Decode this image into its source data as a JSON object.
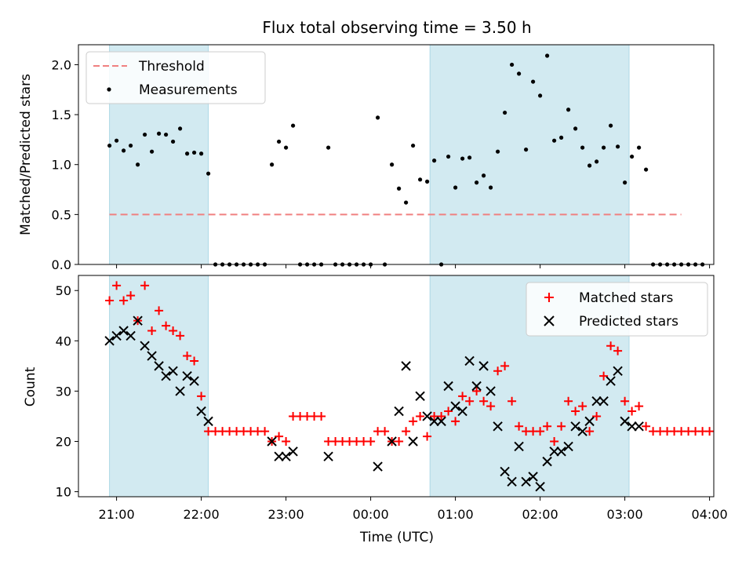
{
  "figure": {
    "title": "Flux total observing time = 3.50 h"
  },
  "colors": {
    "threshold": "#f08080",
    "measurements": "#000000",
    "matched": "#ff0000",
    "predicted": "#000000",
    "band": "#add8e6"
  },
  "chart_data": [
    {
      "type": "scatter",
      "title": "Flux total observing time = 3.50 h",
      "xlabel": "",
      "ylabel": "Matched/Predicted stars",
      "ylim": [
        0,
        2.2
      ],
      "xlim_hours_utc": [
        20.55,
        28.05
      ],
      "yticks": [
        "0.0",
        "0.5",
        "1.0",
        "1.5",
        "2.0"
      ],
      "shaded_intervals": [
        [
          "20:55",
          "22:05"
        ],
        [
          "00:42",
          "03:03"
        ]
      ],
      "threshold": {
        "name": "Threshold",
        "value": 0.5,
        "x_range": [
          "20:55",
          "03:40"
        ],
        "style": "dashed"
      },
      "legend": {
        "position": "top-left",
        "entries": [
          "Threshold",
          "Measurements"
        ]
      },
      "series": [
        {
          "name": "Measurements",
          "points": [
            [
              "20:55",
              1.19
            ],
            [
              "21:00",
              1.24
            ],
            [
              "21:05",
              1.14
            ],
            [
              "21:10",
              1.19
            ],
            [
              "21:15",
              1.0
            ],
            [
              "21:20",
              1.3
            ],
            [
              "21:25",
              1.13
            ],
            [
              "21:30",
              1.31
            ],
            [
              "21:35",
              1.3
            ],
            [
              "21:40",
              1.23
            ],
            [
              "21:45",
              1.36
            ],
            [
              "21:50",
              1.11
            ],
            [
              "21:55",
              1.12
            ],
            [
              "22:00",
              1.11
            ],
            [
              "22:05",
              0.91
            ],
            [
              "22:10",
              0.0
            ],
            [
              "22:15",
              0.0
            ],
            [
              "22:20",
              0.0
            ],
            [
              "22:25",
              0.0
            ],
            [
              "22:30",
              0.0
            ],
            [
              "22:35",
              0.0
            ],
            [
              "22:40",
              0.0
            ],
            [
              "22:45",
              0.0
            ],
            [
              "22:50",
              1.0
            ],
            [
              "22:55",
              1.23
            ],
            [
              "23:00",
              1.17
            ],
            [
              "23:05",
              1.39
            ],
            [
              "23:10",
              0.0
            ],
            [
              "23:15",
              0.0
            ],
            [
              "23:20",
              0.0
            ],
            [
              "23:25",
              0.0
            ],
            [
              "23:30",
              1.17
            ],
            [
              "23:35",
              0.0
            ],
            [
              "23:40",
              0.0
            ],
            [
              "23:45",
              0.0
            ],
            [
              "23:50",
              0.0
            ],
            [
              "23:55",
              0.0
            ],
            [
              "00:00",
              0.0
            ],
            [
              "00:05",
              1.47
            ],
            [
              "00:10",
              0.0
            ],
            [
              "00:15",
              1.0
            ],
            [
              "00:20",
              0.76
            ],
            [
              "00:25",
              0.62
            ],
            [
              "00:30",
              1.19
            ],
            [
              "00:35",
              0.85
            ],
            [
              "00:40",
              0.83
            ],
            [
              "00:45",
              1.04
            ],
            [
              "00:50",
              0.0
            ],
            [
              "00:55",
              1.08
            ],
            [
              "01:00",
              0.77
            ],
            [
              "01:05",
              1.06
            ],
            [
              "01:10",
              1.07
            ],
            [
              "01:15",
              0.82
            ],
            [
              "01:20",
              0.89
            ],
            [
              "01:25",
              0.77
            ],
            [
              "01:30",
              1.13
            ],
            [
              "01:35",
              1.52
            ],
            [
              "01:40",
              2.0
            ],
            [
              "01:45",
              1.91
            ],
            [
              "01:50",
              1.15
            ],
            [
              "01:55",
              1.83
            ],
            [
              "02:00",
              1.69
            ],
            [
              "02:05",
              2.09
            ],
            [
              "02:10",
              1.24
            ],
            [
              "02:15",
              1.27
            ],
            [
              "02:20",
              1.55
            ],
            [
              "02:25",
              1.36
            ],
            [
              "02:30",
              1.17
            ],
            [
              "02:35",
              0.99
            ],
            [
              "02:40",
              1.03
            ],
            [
              "02:45",
              1.17
            ],
            [
              "02:50",
              1.39
            ],
            [
              "02:55",
              1.18
            ],
            [
              "03:00",
              0.82
            ],
            [
              "03:05",
              1.08
            ],
            [
              "03:10",
              1.17
            ],
            [
              "03:15",
              0.95
            ],
            [
              "03:20",
              0.0
            ],
            [
              "03:25",
              0.0
            ],
            [
              "03:30",
              0.0
            ],
            [
              "03:35",
              0.0
            ],
            [
              "03:40",
              0.0
            ],
            [
              "03:45",
              0.0
            ],
            [
              "03:50",
              0.0
            ],
            [
              "03:55",
              0.0
            ]
          ]
        }
      ]
    },
    {
      "type": "scatter",
      "xlabel": "Time (UTC)",
      "ylabel": "Count",
      "ylim": [
        9,
        53
      ],
      "xlim_hours_utc": [
        20.55,
        28.05
      ],
      "xticks": [
        "21:00",
        "22:00",
        "23:00",
        "00:00",
        "01:00",
        "02:00",
        "03:00",
        "04:00"
      ],
      "yticks": [
        "10",
        "20",
        "30",
        "40",
        "50"
      ],
      "shaded_intervals": [
        [
          "20:55",
          "22:05"
        ],
        [
          "00:42",
          "03:03"
        ]
      ],
      "legend": {
        "position": "top-right",
        "entries": [
          "Matched stars",
          "Predicted stars"
        ]
      },
      "series": [
        {
          "name": "Matched stars",
          "marker": "plus",
          "points": [
            [
              "20:55",
              48
            ],
            [
              "21:00",
              51
            ],
            [
              "21:05",
              48
            ],
            [
              "21:10",
              49
            ],
            [
              "21:15",
              44
            ],
            [
              "21:20",
              51
            ],
            [
              "21:25",
              42
            ],
            [
              "21:30",
              46
            ],
            [
              "21:35",
              43
            ],
            [
              "21:40",
              42
            ],
            [
              "21:45",
              41
            ],
            [
              "21:50",
              37
            ],
            [
              "21:55",
              36
            ],
            [
              "22:00",
              29
            ],
            [
              "22:05",
              22
            ],
            [
              "22:10",
              22
            ],
            [
              "22:15",
              22
            ],
            [
              "22:20",
              22
            ],
            [
              "22:25",
              22
            ],
            [
              "22:30",
              22
            ],
            [
              "22:35",
              22
            ],
            [
              "22:40",
              22
            ],
            [
              "22:45",
              22
            ],
            [
              "22:50",
              20
            ],
            [
              "22:55",
              21
            ],
            [
              "23:00",
              20
            ],
            [
              "23:05",
              25
            ],
            [
              "23:10",
              25
            ],
            [
              "23:15",
              25
            ],
            [
              "23:20",
              25
            ],
            [
              "23:25",
              25
            ],
            [
              "23:30",
              20
            ],
            [
              "23:35",
              20
            ],
            [
              "23:40",
              20
            ],
            [
              "23:45",
              20
            ],
            [
              "23:50",
              20
            ],
            [
              "23:55",
              20
            ],
            [
              "00:00",
              20
            ],
            [
              "00:05",
              22
            ],
            [
              "00:10",
              22
            ],
            [
              "00:15",
              20
            ],
            [
              "00:20",
              20
            ],
            [
              "00:25",
              22
            ],
            [
              "00:30",
              24
            ],
            [
              "00:35",
              25
            ],
            [
              "00:40",
              21
            ],
            [
              "00:45",
              25
            ],
            [
              "00:50",
              25
            ],
            [
              "00:55",
              26
            ],
            [
              "01:00",
              24
            ],
            [
              "01:05",
              29
            ],
            [
              "01:10",
              28
            ],
            [
              "01:15",
              30
            ],
            [
              "01:20",
              28
            ],
            [
              "01:25",
              27
            ],
            [
              "01:30",
              34
            ],
            [
              "01:35",
              35
            ],
            [
              "01:40",
              28
            ],
            [
              "01:45",
              23
            ],
            [
              "01:50",
              22
            ],
            [
              "01:55",
              22
            ],
            [
              "02:00",
              22
            ],
            [
              "02:05",
              23
            ],
            [
              "02:10",
              20
            ],
            [
              "02:15",
              23
            ],
            [
              "02:20",
              28
            ],
            [
              "02:25",
              26
            ],
            [
              "02:30",
              27
            ],
            [
              "02:35",
              22
            ],
            [
              "02:40",
              25
            ],
            [
              "02:45",
              33
            ],
            [
              "02:50",
              39
            ],
            [
              "02:55",
              38
            ],
            [
              "03:00",
              28
            ],
            [
              "03:05",
              26
            ],
            [
              "03:10",
              27
            ],
            [
              "03:15",
              23
            ],
            [
              "03:20",
              22
            ],
            [
              "03:25",
              22
            ],
            [
              "03:30",
              22
            ],
            [
              "03:35",
              22
            ],
            [
              "03:40",
              22
            ],
            [
              "03:45",
              22
            ],
            [
              "03:50",
              22
            ],
            [
              "03:55",
              22
            ],
            [
              "04:00",
              22
            ]
          ]
        },
        {
          "name": "Predicted stars",
          "marker": "x",
          "points": [
            [
              "20:55",
              40
            ],
            [
              "21:00",
              41
            ],
            [
              "21:05",
              42
            ],
            [
              "21:10",
              41
            ],
            [
              "21:15",
              44
            ],
            [
              "21:20",
              39
            ],
            [
              "21:25",
              37
            ],
            [
              "21:30",
              35
            ],
            [
              "21:35",
              33
            ],
            [
              "21:40",
              34
            ],
            [
              "21:45",
              30
            ],
            [
              "21:50",
              33
            ],
            [
              "21:55",
              32
            ],
            [
              "22:00",
              26
            ],
            [
              "22:05",
              24
            ],
            [
              "22:50",
              20
            ],
            [
              "22:55",
              17
            ],
            [
              "23:00",
              17
            ],
            [
              "23:05",
              18
            ],
            [
              "23:30",
              17
            ],
            [
              "00:05",
              15
            ],
            [
              "00:15",
              20
            ],
            [
              "00:20",
              26
            ],
            [
              "00:25",
              35
            ],
            [
              "00:30",
              20
            ],
            [
              "00:35",
              29
            ],
            [
              "00:40",
              25
            ],
            [
              "00:45",
              24
            ],
            [
              "00:50",
              24
            ],
            [
              "00:55",
              31
            ],
            [
              "01:00",
              27
            ],
            [
              "01:05",
              26
            ],
            [
              "01:10",
              36
            ],
            [
              "01:15",
              31
            ],
            [
              "01:20",
              35
            ],
            [
              "01:25",
              30
            ],
            [
              "01:30",
              23
            ],
            [
              "01:35",
              14
            ],
            [
              "01:40",
              12
            ],
            [
              "01:45",
              19
            ],
            [
              "01:50",
              12
            ],
            [
              "01:55",
              13
            ],
            [
              "02:00",
              11
            ],
            [
              "02:05",
              16
            ],
            [
              "02:10",
              18
            ],
            [
              "02:15",
              18
            ],
            [
              "02:20",
              19
            ],
            [
              "02:25",
              23
            ],
            [
              "02:30",
              22
            ],
            [
              "02:35",
              24
            ],
            [
              "02:40",
              28
            ],
            [
              "02:45",
              28
            ],
            [
              "02:50",
              32
            ],
            [
              "02:55",
              34
            ],
            [
              "03:00",
              24
            ],
            [
              "03:05",
              23
            ],
            [
              "03:10",
              23
            ]
          ]
        }
      ]
    }
  ]
}
